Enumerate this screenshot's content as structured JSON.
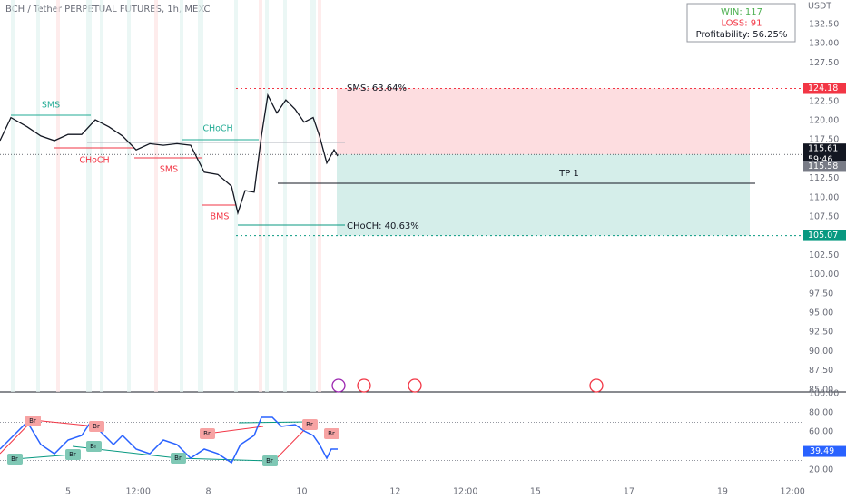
{
  "chart_data": {
    "type": "line",
    "title": "BCH / Tether PERPETUAL FUTURES, 1h, MEXC",
    "y_unit": "USDT",
    "x": [
      3.544,
      3.777,
      4.127,
      4.418,
      4.709,
      5.0,
      5.292,
      5.583,
      5.874,
      6.165,
      6.457,
      6.748,
      7.039,
      7.33,
      7.622,
      7.913,
      8.204,
      8.495,
      8.631,
      8.787,
      8.981,
      9.136,
      9.272,
      9.466,
      9.66,
      9.855,
      10.049,
      10.243,
      10.379,
      10.534,
      10.69,
      10.767
    ],
    "values": [
      117.4,
      120.4,
      119.2,
      118,
      117.4,
      118.2,
      118.2,
      120.1,
      119.2,
      118,
      116.2,
      117,
      116.8,
      117,
      116.8,
      113.3,
      113,
      111.5,
      108,
      110.9,
      110.7,
      118,
      123.3,
      121,
      122.7,
      121.5,
      119.8,
      120.4,
      118,
      114.5,
      116.2,
      115.4
    ],
    "color": "#131722",
    "xlim": [
      3.544,
      20.73
    ],
    "xticks": [
      5,
      {
        "value": 6.5,
        "label": "12:00"
      },
      8,
      10,
      12,
      {
        "value": 13.5,
        "label": "12:00"
      },
      15,
      17,
      19,
      {
        "value": 20.5,
        "label": "12:00"
      }
    ],
    "ylim": [
      84.74,
      135.68
    ],
    "yticks": [
      {
        "value": 85,
        "label": "85.00"
      },
      {
        "value": 87.5,
        "label": "87.50"
      },
      {
        "value": 90,
        "label": "90.00"
      },
      {
        "value": 92.5,
        "label": "92.50"
      },
      {
        "value": 95,
        "label": "95.00"
      },
      {
        "value": 97.5,
        "label": "97.50"
      },
      {
        "value": 100,
        "label": "100.00"
      },
      {
        "value": 102.5,
        "label": "102.50"
      },
      {
        "value": 107.5,
        "label": "107.50"
      },
      {
        "value": 110,
        "label": "110.00"
      },
      {
        "value": 112.5,
        "label": "112.50"
      },
      {
        "value": 117.5,
        "label": "117.50"
      },
      {
        "value": 120,
        "label": "120.00"
      },
      {
        "value": 122.5,
        "label": "122.50"
      },
      {
        "value": 127.5,
        "label": "127.50"
      },
      {
        "value": 130,
        "label": "130.00"
      },
      {
        "value": 132.5,
        "label": "132.50"
      }
    ],
    "price_markers": [
      {
        "value": 124.18,
        "color": "#f23645"
      },
      {
        "value": 115.61,
        "color": "#131722",
        "countdown": "59:46"
      },
      {
        "value": 115.58,
        "color": "#787b86"
      },
      {
        "value": 105.07,
        "color": "#089981"
      }
    ],
    "annotations": [
      {
        "text": "SMS",
        "color": "#22ab94"
      },
      {
        "text": "CHoCH",
        "color": "#f23645"
      },
      {
        "text": "SMS",
        "color": "#f23645"
      },
      {
        "text": "CHoCH",
        "color": "#22ab94"
      },
      {
        "text": "BMS",
        "color": "#f23645"
      },
      {
        "text": "SMS: 63.64%",
        "color": "#131722"
      },
      {
        "text": "CHoCH: 40.63%",
        "color": "#131722"
      },
      {
        "text": "TP 1",
        "color": "#131722"
      }
    ],
    "stats": [
      {
        "text": "WIN: 117",
        "color": "#4caf50"
      },
      {
        "text": "LOSS: 91",
        "color": "#f23645"
      },
      {
        "text": "Profitability: 56.25%",
        "color": "#131722"
      }
    ],
    "rsi": {
      "x": [
        3.544,
        3.835,
        4.127,
        4.418,
        4.709,
        5.0,
        5.292,
        5.486,
        5.68,
        5.971,
        6.165,
        6.457,
        6.748,
        7.039,
        7.33,
        7.622,
        7.913,
        8.204,
        8.495,
        8.689,
        8.981,
        9.136,
        9.369,
        9.564,
        9.855,
        10.049,
        10.243,
        10.379,
        10.534,
        10.631,
        10.767
      ],
      "values": [
        41.9,
        56.2,
        70.5,
        46.7,
        37.1,
        51.4,
        56.2,
        70.5,
        61,
        46.7,
        56.2,
        41.9,
        37.1,
        51.4,
        46.7,
        32.4,
        41.9,
        37.1,
        27.6,
        46.7,
        56.2,
        75.2,
        75.2,
        65.7,
        67.6,
        61,
        56.2,
        46.7,
        32.4,
        41.9,
        41.9
      ],
      "color": "#2962ff",
      "ylim": [
        8.6,
        101.9
      ],
      "yticks": [
        {
          "value": 20,
          "label": "20.00"
        },
        {
          "value": 60,
          "label": "60.00"
        },
        {
          "value": 80,
          "label": "80.00"
        },
        {
          "value": 100,
          "label": "100.00"
        }
      ],
      "levels": [
        70,
        30
      ],
      "last": 39.49,
      "labels": [
        {
          "text": "Br",
          "color": "#f7a3a3"
        },
        {
          "text": "Br",
          "color": "#f7a3a3"
        },
        {
          "text": "Br",
          "color": "#f7a3a3"
        },
        {
          "text": "Br",
          "color": "#f7a3a3"
        },
        {
          "text": "Br",
          "color": "#f7a3a3"
        },
        {
          "text": "Br",
          "color": "#7fc8b5"
        },
        {
          "text": "Br",
          "color": "#7fc8b5"
        },
        {
          "text": "Br",
          "color": "#7fc8b5"
        },
        {
          "text": "Br",
          "color": "#7fc8b5"
        },
        {
          "text": "Br",
          "color": "#7fc8b5"
        }
      ]
    }
  }
}
